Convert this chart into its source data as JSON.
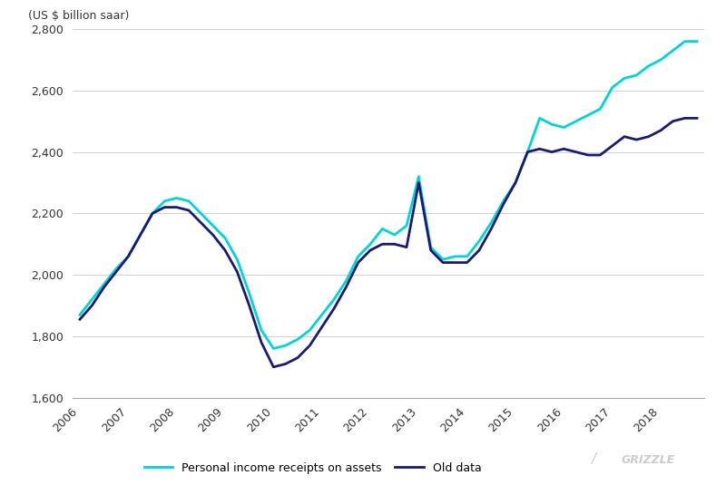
{
  "ylabel": "(US $ billion saar)",
  "ylim": [
    1600,
    2800
  ],
  "yticks": [
    1600,
    1800,
    2000,
    2200,
    2400,
    2600,
    2800
  ],
  "background_color": "#ffffff",
  "grid_color": "#d0d0d0",
  "cyan_color": "#00d4d4",
  "navy_color": "#1a1a6e",
  "series1_label": "Personal income receipts on assets",
  "series2_label": "Old data",
  "series1_x": [
    2006.0,
    2006.25,
    2006.5,
    2006.75,
    2007.0,
    2007.25,
    2007.5,
    2007.75,
    2008.0,
    2008.25,
    2008.5,
    2008.75,
    2009.0,
    2009.25,
    2009.5,
    2009.75,
    2010.0,
    2010.25,
    2010.5,
    2010.75,
    2011.0,
    2011.25,
    2011.5,
    2011.75,
    2012.0,
    2012.25,
    2012.5,
    2012.75,
    2013.0,
    2013.25,
    2013.5,
    2013.75,
    2014.0,
    2014.25,
    2014.5,
    2014.75,
    2015.0,
    2015.25,
    2015.5,
    2015.75,
    2016.0,
    2016.25,
    2016.5,
    2016.75,
    2017.0,
    2017.25,
    2017.5,
    2017.75,
    2018.0,
    2018.25,
    2018.5,
    2018.75
  ],
  "series1_y": [
    1870,
    1920,
    1970,
    2020,
    2060,
    2130,
    2200,
    2240,
    2250,
    2240,
    2200,
    2160,
    2120,
    2050,
    1940,
    1820,
    1760,
    1770,
    1790,
    1820,
    1870,
    1920,
    1980,
    2060,
    2100,
    2150,
    2130,
    2160,
    2320,
    2090,
    2050,
    2060,
    2060,
    2110,
    2170,
    2240,
    2300,
    2400,
    2510,
    2490,
    2480,
    2500,
    2520,
    2540,
    2610,
    2640,
    2650,
    2680,
    2700,
    2730,
    2760,
    2760
  ],
  "series2_x": [
    2006.0,
    2006.25,
    2006.5,
    2006.75,
    2007.0,
    2007.25,
    2007.5,
    2007.75,
    2008.0,
    2008.25,
    2008.5,
    2008.75,
    2009.0,
    2009.25,
    2009.5,
    2009.75,
    2010.0,
    2010.25,
    2010.5,
    2010.75,
    2011.0,
    2011.25,
    2011.5,
    2011.75,
    2012.0,
    2012.25,
    2012.5,
    2012.75,
    2013.0,
    2013.25,
    2013.5,
    2013.75,
    2014.0,
    2014.25,
    2014.5,
    2014.75,
    2015.0,
    2015.25,
    2015.5,
    2015.75,
    2016.0,
    2016.25,
    2016.5,
    2016.75,
    2017.0,
    2017.25,
    2017.5,
    2017.75,
    2018.0,
    2018.25,
    2018.5,
    2018.75
  ],
  "series2_y": [
    1855,
    1900,
    1960,
    2010,
    2060,
    2130,
    2200,
    2220,
    2220,
    2210,
    2170,
    2130,
    2080,
    2010,
    1900,
    1780,
    1700,
    1710,
    1730,
    1770,
    1830,
    1890,
    1960,
    2040,
    2080,
    2100,
    2100,
    2090,
    2300,
    2080,
    2040,
    2040,
    2040,
    2080,
    2150,
    2230,
    2300,
    2400,
    2410,
    2400,
    2410,
    2400,
    2390,
    2390,
    2420,
    2450,
    2440,
    2450,
    2470,
    2500,
    2510,
    2510
  ]
}
